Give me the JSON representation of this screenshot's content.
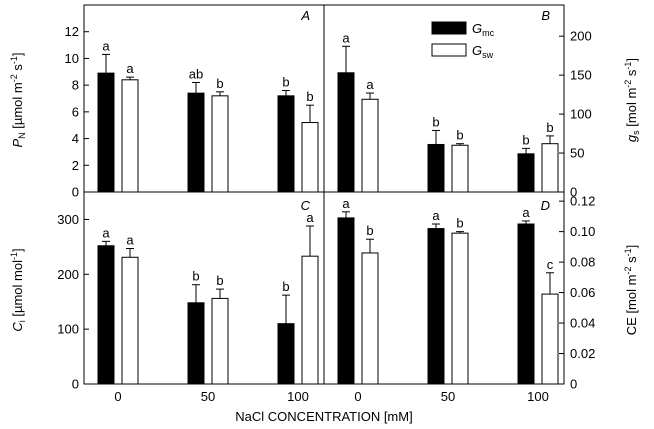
{
  "figure": {
    "x_axis_title": "NaCl CONCENTRATION [mM]",
    "panel_labels": [
      "A",
      "B",
      "C",
      "D"
    ],
    "legend": [
      {
        "name": "G",
        "sub": "mc",
        "color": "#000000"
      },
      {
        "name": "G",
        "sub": "sw",
        "color": "#ffffff"
      }
    ],
    "left_axis_titles": {
      "top": {
        "main": "P",
        "sub": "N",
        "rest": " [µmol m",
        "sup1": "-2",
        "mid": " s",
        "sup2": "-1",
        "end": "]"
      },
      "bottom": {
        "main": "C",
        "sub": "i",
        "rest": " [µmol mol",
        "sup1": "-1",
        "end": "]"
      }
    },
    "right_axis_titles": {
      "top": {
        "main": "g",
        "sub": "s",
        "rest": " [mol m",
        "sup1": "-2",
        "mid": " s",
        "sup2": "-1",
        "end": "]"
      },
      "bottom": {
        "main": "CE",
        "rest": " [mol m",
        "sup1": "-2",
        "mid": " s",
        "sup2": "-1",
        "end": "]"
      }
    }
  },
  "chart_data": [
    {
      "type": "bar",
      "panel": "A",
      "ylabel": "PN [µmol m-2 s-1]",
      "ylim": [
        0,
        14
      ],
      "yticks": [
        0,
        2,
        4,
        6,
        8,
        10,
        12
      ],
      "ytick_labels": [
        "0",
        "2",
        "4",
        "6",
        "8",
        "10",
        "12"
      ],
      "axis_side": "left",
      "categories": [
        "0",
        "50",
        "100"
      ],
      "series": [
        {
          "name": "Gmc",
          "values": [
            8.9,
            7.4,
            7.2
          ],
          "errors": [
            1.4,
            0.8,
            0.4
          ],
          "letters": [
            "a",
            "ab",
            "b"
          ]
        },
        {
          "name": "Gsw",
          "values": [
            8.4,
            7.2,
            5.2
          ],
          "errors": [
            0.2,
            0.3,
            1.3
          ],
          "letters": [
            "a",
            "b",
            "b"
          ]
        }
      ]
    },
    {
      "type": "bar",
      "panel": "B",
      "ylabel": "gs [mol m-2 s-1]",
      "ylim": [
        0,
        240
      ],
      "yticks": [
        0,
        50,
        100,
        150,
        200
      ],
      "ytick_labels": [
        "0",
        "50",
        "100",
        "150",
        "200"
      ],
      "axis_side": "right",
      "categories": [
        "0",
        "50",
        "100"
      ],
      "series": [
        {
          "name": "Gmc",
          "values": [
            153,
            61,
            49
          ],
          "errors": [
            34,
            18,
            7
          ],
          "letters": [
            "a",
            "b",
            "b"
          ]
        },
        {
          "name": "Gsw",
          "values": [
            119,
            60,
            62
          ],
          "errors": [
            8,
            2,
            10
          ],
          "letters": [
            "a",
            "b",
            "b"
          ]
        }
      ]
    },
    {
      "type": "bar",
      "panel": "C",
      "ylabel": "Ci [µmol mol-1]",
      "ylim": [
        0,
        350
      ],
      "yticks": [
        0,
        100,
        200,
        300
      ],
      "ytick_labels": [
        "0",
        "100",
        "200",
        "300"
      ],
      "axis_side": "left",
      "categories": [
        "0",
        "50",
        "100"
      ],
      "series": [
        {
          "name": "Gmc",
          "values": [
            252,
            148,
            110
          ],
          "errors": [
            8,
            33,
            52
          ],
          "letters": [
            "a",
            "b",
            "b"
          ]
        },
        {
          "name": "Gsw",
          "values": [
            231,
            156,
            233
          ],
          "errors": [
            16,
            17,
            55
          ],
          "letters": [
            "a",
            "b",
            "a"
          ]
        }
      ]
    },
    {
      "type": "bar",
      "panel": "D",
      "ylabel": "CE [mol m-2 s-1]",
      "ylim": [
        0,
        0.126
      ],
      "yticks": [
        0,
        0.02,
        0.04,
        0.06,
        0.08,
        0.1,
        0.12
      ],
      "ytick_labels": [
        "0",
        "0.02",
        "0.04",
        "0.06",
        "0.08",
        "0.10",
        "0.12"
      ],
      "axis_side": "right",
      "categories": [
        "0",
        "50",
        "100"
      ],
      "series": [
        {
          "name": "Gmc",
          "values": [
            0.109,
            0.102,
            0.105
          ],
          "errors": [
            0.004,
            0.003,
            0.002
          ],
          "letters": [
            "a",
            "a",
            "a"
          ]
        },
        {
          "name": "Gsw",
          "values": [
            0.086,
            0.099,
            0.059
          ],
          "errors": [
            0.009,
            0.001,
            0.014
          ],
          "letters": [
            "b",
            "b",
            "c"
          ]
        }
      ]
    }
  ]
}
